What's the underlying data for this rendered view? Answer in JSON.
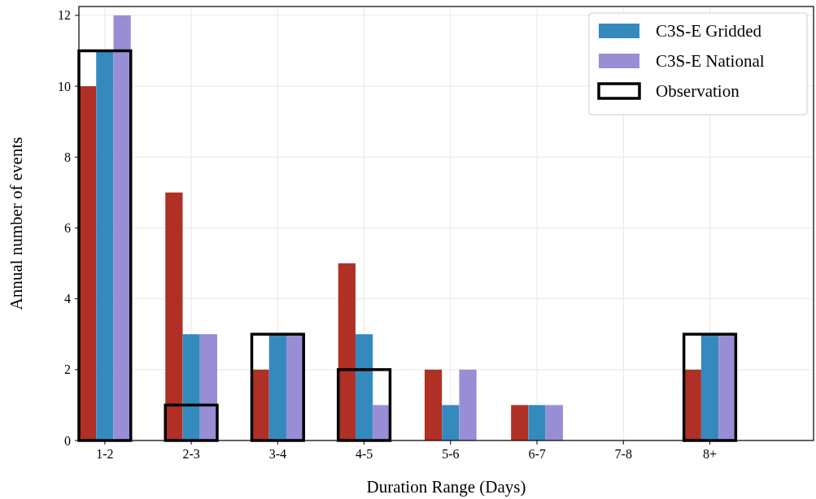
{
  "chart_data": {
    "type": "bar",
    "xlabel": "Duration Range (Days)",
    "ylabel": "Annual number of events",
    "categories": [
      "1-2",
      "2-3",
      "3-4",
      "4-5",
      "5-6",
      "6-7",
      "7-8",
      "8+"
    ],
    "series": [
      {
        "color": "#b03025",
        "values": [
          10,
          7,
          2,
          5,
          2,
          1,
          0,
          2
        ]
      },
      {
        "name": "C3S-E Gridded",
        "color": "#348abd",
        "values": [
          11,
          3,
          3,
          3,
          1,
          1,
          0,
          3
        ]
      },
      {
        "name": "C3S-E National",
        "color": "#988ed5",
        "values": [
          12,
          3,
          3,
          1,
          2,
          1,
          0,
          3
        ]
      },
      {
        "name": "Observation",
        "color": "#000000",
        "line_style": "solid",
        "values": [
          11,
          1,
          3,
          2,
          0,
          0,
          0,
          3
        ]
      }
    ],
    "ylim": [
      0,
      12.25
    ],
    "yticks": [
      0,
      2,
      4,
      6,
      8,
      10,
      12
    ],
    "grid": true,
    "legend": "top right"
  }
}
